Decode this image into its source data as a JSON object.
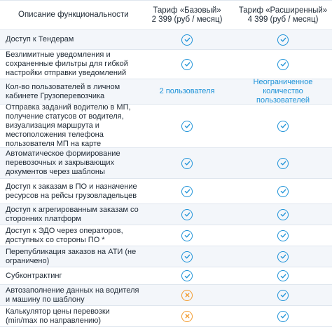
{
  "header": {
    "feature_col": "Описание функциональности",
    "plan_basic_name": "Тариф «Базовый»",
    "plan_basic_price": "2 399 (руб / месяц)",
    "plan_ext_name": "Тариф «Расширенный»",
    "plan_ext_price": "4 399 (руб / месяц)"
  },
  "rows": [
    {
      "feature": "Доступ к Тендерам",
      "basic": "check",
      "ext": "check"
    },
    {
      "feature": "Безлимитные уведомления и сохраненные фильтры для гибкой настройки отправки уведомлений",
      "basic": "check",
      "ext": "check"
    },
    {
      "feature": "Кол-во пользователей в личном кабинете Грузоперевозчика",
      "basic_text": "2 пользователя",
      "ext_text": "Неограниченное количество пользователей"
    },
    {
      "feature": "Отправка заданий водителю в МП, получение статусов от водителя, визуализация маршрута и местоположения телефона пользователя МП на карте",
      "basic": "check",
      "ext": "check"
    },
    {
      "feature": "Автоматическое формирование перевозочных и закрывающих документов через шаблоны",
      "basic": "check",
      "ext": "check"
    },
    {
      "feature": "Доступ к заказам в ПО и назначение ресурсов на рейсы грузовладельцев",
      "basic": "check",
      "ext": "check"
    },
    {
      "feature": "Доступ к агрегированным заказам со сторонних платформ",
      "basic": "check",
      "ext": "check"
    },
    {
      "feature": "Доступ к ЭДО через операторов, доступных со стороны ПО *",
      "basic": "check",
      "ext": "check"
    },
    {
      "feature": "Перепубликация заказов на АТИ (не ограничено)",
      "basic": "check",
      "ext": "check"
    },
    {
      "feature": "Субконтрактинг",
      "basic": "check",
      "ext": "check"
    },
    {
      "feature": "Автозаполнение данных на водителя и машину по шаблону",
      "basic": "cross",
      "ext": "check"
    },
    {
      "feature": "Калькулятор цены перевозки (min/max по направлению)",
      "basic": "cross",
      "ext": "check"
    }
  ],
  "colors": {
    "check": "#1d92d8",
    "cross": "#f39a2c",
    "alt_row": "#f3f6fa",
    "border": "#dfe6ee"
  }
}
